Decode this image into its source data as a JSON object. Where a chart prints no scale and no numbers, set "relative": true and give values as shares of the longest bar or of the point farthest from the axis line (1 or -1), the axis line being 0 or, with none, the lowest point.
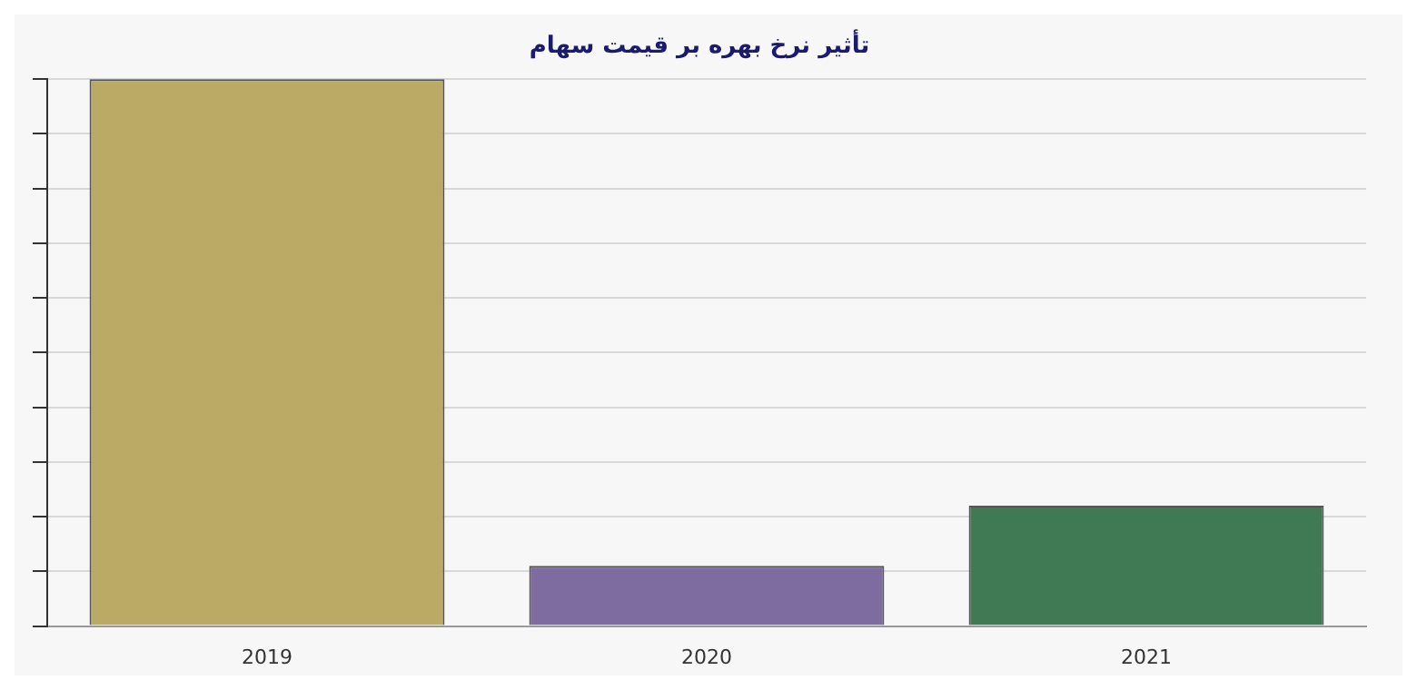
{
  "chart_data": {
    "type": "bar",
    "title": "تأثیر نرخ بهره بر قیمت سهام",
    "categories": [
      "2019",
      "2020",
      "2021"
    ],
    "values": [
      1,
      0.11,
      0.22
    ],
    "colors": [
      "#bba966",
      "#7e6ba0",
      "#3f7a55"
    ],
    "relative": true,
    "grid": "y",
    "legend": false
  }
}
